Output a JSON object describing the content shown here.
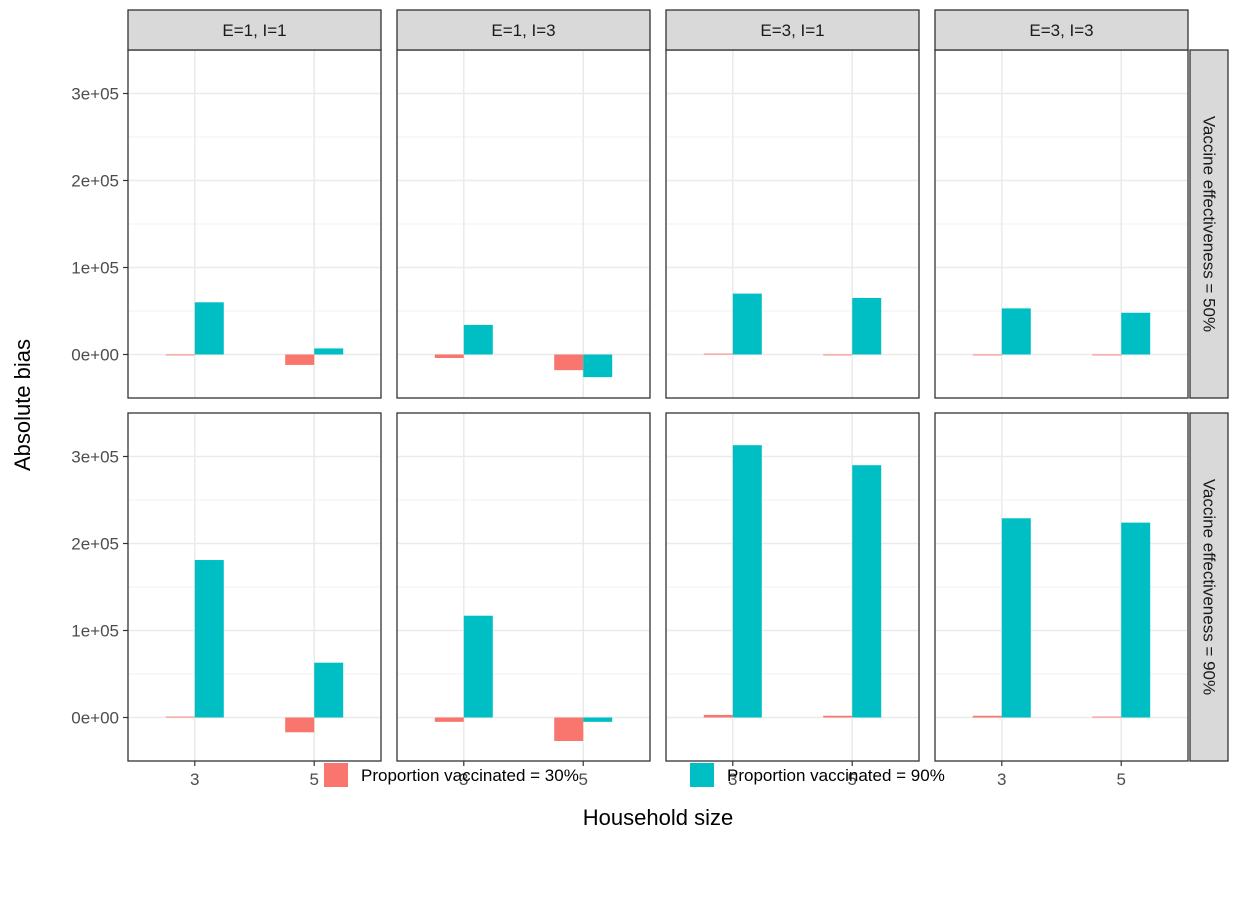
{
  "chart_data": {
    "type": "bar",
    "facet_columns": [
      "E=1, I=1",
      "E=1, I=3",
      "E=3, I=1",
      "E=3, I=3"
    ],
    "facet_rows": [
      "Vaccine effectiveness = 50%",
      "Vaccine effectiveness = 90%"
    ],
    "categories": [
      "3",
      "5"
    ],
    "xlabel": "Household size",
    "ylabel": "Absolute bias",
    "ylim": [
      -50000,
      350000
    ],
    "yticks": [
      0,
      100000,
      200000,
      300000
    ],
    "ytick_labels": [
      "0e+00",
      "1e+05",
      "2e+05",
      "3e+05"
    ],
    "legend_position": "bottom",
    "grid": true,
    "series": [
      {
        "name": "Proportion vaccinated = 30%",
        "color": "#F8766D",
        "panels": [
          [
            [
              -1000,
              -12000
            ],
            [
              -4000,
              -18000
            ],
            [
              1000,
              -1000
            ],
            [
              -1000,
              -1000
            ]
          ],
          [
            [
              1000,
              -17000
            ],
            [
              -5000,
              -27000
            ],
            [
              3000,
              2000
            ],
            [
              2000,
              1000
            ]
          ]
        ]
      },
      {
        "name": "Proportion vaccinated = 90%",
        "color": "#00BFC4",
        "panels": [
          [
            [
              60000,
              7000
            ],
            [
              34000,
              -26000
            ],
            [
              70000,
              65000
            ],
            [
              53000,
              48000
            ]
          ],
          [
            [
              181000,
              63000
            ],
            [
              117000,
              -5000
            ],
            [
              313000,
              290000
            ],
            [
              229000,
              224000
            ]
          ]
        ]
      }
    ]
  }
}
